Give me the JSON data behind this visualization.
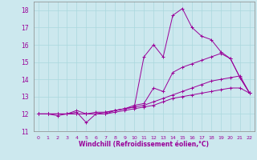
{
  "xlabel": "Windchill (Refroidissement éolien,°C)",
  "bg_color": "#cce8ee",
  "line_color": "#990099",
  "ylim": [
    11,
    18.5
  ],
  "xlim": [
    -0.5,
    22.5
  ],
  "yticks": [
    11,
    12,
    13,
    14,
    15,
    16,
    17,
    18
  ],
  "xticks": [
    0,
    1,
    2,
    3,
    4,
    5,
    6,
    7,
    8,
    9,
    10,
    11,
    12,
    13,
    14,
    15,
    16,
    17,
    18,
    19,
    20,
    21,
    22
  ],
  "series": [
    [
      12.0,
      12.0,
      11.9,
      12.0,
      12.1,
      11.5,
      12.0,
      12.1,
      12.2,
      12.3,
      12.4,
      15.3,
      16.0,
      15.3,
      17.7,
      18.1,
      17.0,
      16.5,
      16.3,
      15.6,
      15.2,
      14.1,
      13.2
    ],
    [
      12.0,
      12.0,
      12.0,
      12.0,
      12.2,
      12.0,
      12.1,
      12.1,
      12.2,
      12.3,
      12.5,
      12.6,
      13.5,
      13.3,
      14.4,
      14.7,
      14.9,
      15.1,
      15.3,
      15.5,
      15.2,
      14.1,
      13.2
    ],
    [
      12.0,
      12.0,
      12.0,
      12.0,
      12.0,
      12.0,
      12.0,
      12.0,
      12.2,
      12.3,
      12.4,
      12.5,
      12.7,
      12.9,
      13.1,
      13.3,
      13.5,
      13.7,
      13.9,
      14.0,
      14.1,
      14.2,
      13.2
    ],
    [
      12.0,
      12.0,
      12.0,
      12.0,
      12.0,
      12.0,
      12.0,
      12.0,
      12.1,
      12.2,
      12.3,
      12.4,
      12.5,
      12.7,
      12.9,
      13.0,
      13.1,
      13.2,
      13.3,
      13.4,
      13.5,
      13.5,
      13.2
    ]
  ],
  "grid_color": "#aad8dd",
  "spine_color": "#888888",
  "tick_color": "#990099",
  "xlabel_color": "#990099"
}
